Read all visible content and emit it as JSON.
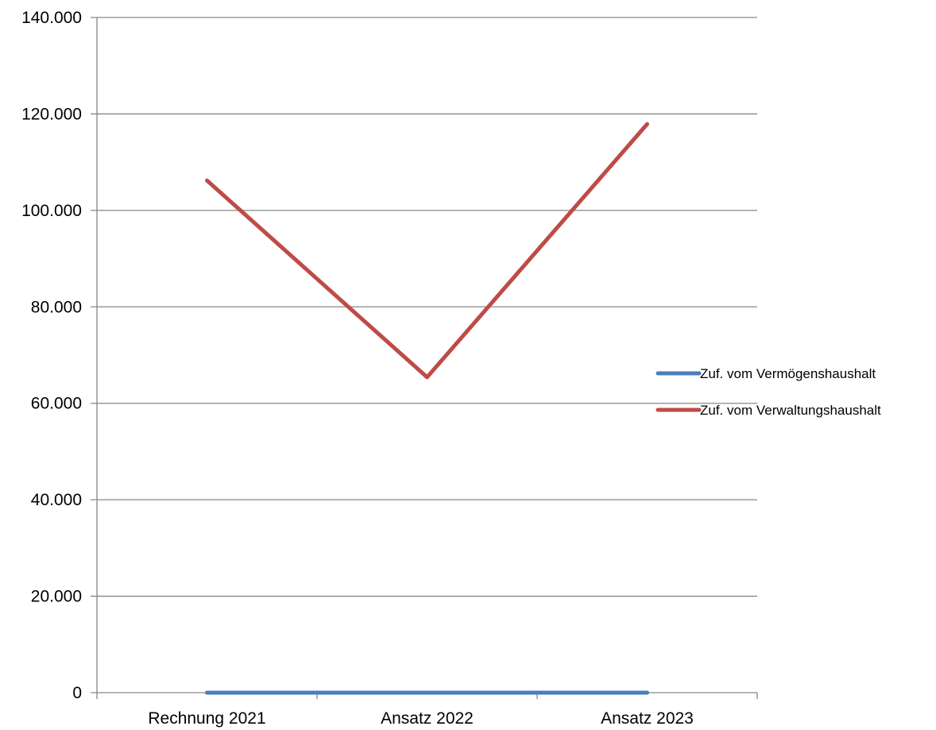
{
  "chart_data": {
    "type": "line",
    "categories": [
      "Rechnung 2021",
      "Ansatz 2022",
      "Ansatz 2023"
    ],
    "series": [
      {
        "name": "Zuf. vom Vermögenshaushalt",
        "color": "#4a7ebb",
        "values": [
          0,
          0,
          0
        ]
      },
      {
        "name": "Zuf. vom Verwaltungshaushalt",
        "color": "#be4b48",
        "values": [
          106200,
          65400,
          117900
        ]
      }
    ],
    "y_ticks": [
      "0",
      "20.000",
      "40.000",
      "60.000",
      "80.000",
      "100.000",
      "120.000",
      "140.000"
    ],
    "ylim": [
      0,
      140000
    ],
    "y_step": 20000,
    "grid": true,
    "legend_position": "right",
    "gridline_color": "#868686",
    "axis_color": "#868686"
  }
}
